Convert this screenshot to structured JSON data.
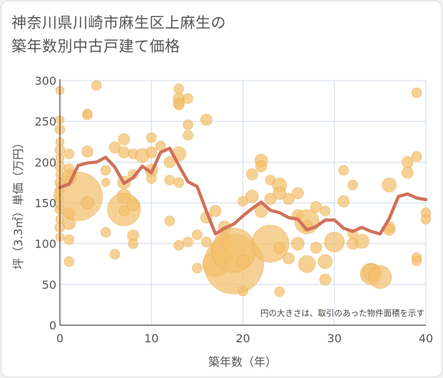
{
  "title_lines": [
    "神奈川県川崎市麻生区上麻生の",
    "築年数別中古戸建て価格"
  ],
  "colors": {
    "bubble_fill": "#f2bf6c",
    "bubble_stroke": "#eaa53c",
    "line": "#d1705a",
    "grid": "#d0dcec",
    "axis": "#444444"
  },
  "chart_data": {
    "type": "scatter",
    "title": "神奈川県川崎市麻生区上麻生の築年数別中古戸建て価格",
    "xlabel": "築年数（年）",
    "ylabel": "坪（3.3㎡）単価（万円）",
    "xlim": [
      0,
      40
    ],
    "ylim": [
      0,
      300
    ],
    "xticks": [
      0,
      10,
      20,
      30,
      40
    ],
    "yticks": [
      0,
      50,
      100,
      150,
      200,
      250,
      300
    ],
    "grid": true,
    "annotation": "円の大きさは、取引のあった物件面積を示す",
    "bubbles": [
      {
        "x": 0,
        "y": 288,
        "s": 6
      },
      {
        "x": 0,
        "y": 252,
        "s": 6
      },
      {
        "x": 0,
        "y": 240,
        "s": 7
      },
      {
        "x": 0,
        "y": 225,
        "s": 6
      },
      {
        "x": 0,
        "y": 215,
        "s": 7
      },
      {
        "x": 0,
        "y": 205,
        "s": 6
      },
      {
        "x": 0,
        "y": 195,
        "s": 7
      },
      {
        "x": 0,
        "y": 185,
        "s": 6
      },
      {
        "x": 0,
        "y": 175,
        "s": 7
      },
      {
        "x": 0,
        "y": 165,
        "s": 6
      },
      {
        "x": 0,
        "y": 155,
        "s": 6
      },
      {
        "x": 0,
        "y": 142,
        "s": 7
      },
      {
        "x": 0,
        "y": 130,
        "s": 6
      },
      {
        "x": 0,
        "y": 120,
        "s": 7
      },
      {
        "x": 0,
        "y": 108,
        "s": 6
      },
      {
        "x": 1,
        "y": 210,
        "s": 7
      },
      {
        "x": 1,
        "y": 192,
        "s": 7
      },
      {
        "x": 1,
        "y": 178,
        "s": 7
      },
      {
        "x": 1,
        "y": 137,
        "s": 8
      },
      {
        "x": 1,
        "y": 105,
        "s": 7
      },
      {
        "x": 1,
        "y": 78,
        "s": 7
      },
      {
        "x": 1,
        "y": 125,
        "s": 9
      },
      {
        "x": 2,
        "y": 158,
        "s": 34
      },
      {
        "x": 1,
        "y": 182,
        "s": 10
      },
      {
        "x": 3,
        "y": 213,
        "s": 8
      },
      {
        "x": 3,
        "y": 150,
        "s": 9
      },
      {
        "x": 3,
        "y": 258,
        "s": 7
      },
      {
        "x": 3,
        "y": 260,
        "s": 6
      },
      {
        "x": 4,
        "y": 294,
        "s": 7
      },
      {
        "x": 5,
        "y": 190,
        "s": 7
      },
      {
        "x": 5,
        "y": 175,
        "s": 6
      },
      {
        "x": 5,
        "y": 114,
        "s": 7
      },
      {
        "x": 6,
        "y": 218,
        "s": 8
      },
      {
        "x": 6,
        "y": 87,
        "s": 7
      },
      {
        "x": 7,
        "y": 228,
        "s": 8
      },
      {
        "x": 7,
        "y": 212,
        "s": 8
      },
      {
        "x": 7,
        "y": 175,
        "s": 9
      },
      {
        "x": 7,
        "y": 158,
        "s": 10
      },
      {
        "x": 7,
        "y": 142,
        "s": 23
      },
      {
        "x": 7,
        "y": 140,
        "s": 7
      },
      {
        "x": 8,
        "y": 210,
        "s": 7
      },
      {
        "x": 8,
        "y": 185,
        "s": 7
      },
      {
        "x": 8,
        "y": 148,
        "s": 9
      },
      {
        "x": 8,
        "y": 110,
        "s": 8
      },
      {
        "x": 8,
        "y": 100,
        "s": 7
      },
      {
        "x": 9,
        "y": 208,
        "s": 10
      },
      {
        "x": 10,
        "y": 230,
        "s": 7
      },
      {
        "x": 10,
        "y": 212,
        "s": 8
      },
      {
        "x": 10,
        "y": 190,
        "s": 9
      },
      {
        "x": 10,
        "y": 180,
        "s": 7
      },
      {
        "x": 11,
        "y": 220,
        "s": 7
      },
      {
        "x": 12,
        "y": 200,
        "s": 8
      },
      {
        "x": 12,
        "y": 178,
        "s": 7
      },
      {
        "x": 12,
        "y": 128,
        "s": 7
      },
      {
        "x": 13,
        "y": 290,
        "s": 7
      },
      {
        "x": 13,
        "y": 278,
        "s": 8
      },
      {
        "x": 13,
        "y": 272,
        "s": 8
      },
      {
        "x": 13,
        "y": 270,
        "s": 7
      },
      {
        "x": 13,
        "y": 210,
        "s": 10
      },
      {
        "x": 13,
        "y": 175,
        "s": 7
      },
      {
        "x": 13,
        "y": 98,
        "s": 7
      },
      {
        "x": 14,
        "y": 278,
        "s": 7
      },
      {
        "x": 14,
        "y": 246,
        "s": 7
      },
      {
        "x": 14,
        "y": 233,
        "s": 7
      },
      {
        "x": 14,
        "y": 102,
        "s": 7
      },
      {
        "x": 15,
        "y": 111,
        "s": 7
      },
      {
        "x": 15,
        "y": 70,
        "s": 7
      },
      {
        "x": 16,
        "y": 252,
        "s": 8
      },
      {
        "x": 16,
        "y": 132,
        "s": 8
      },
      {
        "x": 16,
        "y": 102,
        "s": 7
      },
      {
        "x": 17,
        "y": 140,
        "s": 8
      },
      {
        "x": 17,
        "y": 93,
        "s": 7
      },
      {
        "x": 17,
        "y": 75,
        "s": 18
      },
      {
        "x": 18,
        "y": 120,
        "s": 9
      },
      {
        "x": 18,
        "y": 105,
        "s": 9
      },
      {
        "x": 18,
        "y": 100,
        "s": 9
      },
      {
        "x": 18,
        "y": 84,
        "s": 10
      },
      {
        "x": 19,
        "y": 75,
        "s": 42
      },
      {
        "x": 19,
        "y": 92,
        "s": 31
      },
      {
        "x": 20,
        "y": 152,
        "s": 7
      },
      {
        "x": 20,
        "y": 42,
        "s": 7
      },
      {
        "x": 20,
        "y": 78,
        "s": 9
      },
      {
        "x": 21,
        "y": 185,
        "s": 8
      },
      {
        "x": 21,
        "y": 158,
        "s": 9
      },
      {
        "x": 22,
        "y": 202,
        "s": 9
      },
      {
        "x": 22,
        "y": 195,
        "s": 8
      },
      {
        "x": 22,
        "y": 140,
        "s": 9
      },
      {
        "x": 23,
        "y": 178,
        "s": 7
      },
      {
        "x": 23,
        "y": 155,
        "s": 8
      },
      {
        "x": 23,
        "y": 100,
        "s": 26
      },
      {
        "x": 24,
        "y": 172,
        "s": 10
      },
      {
        "x": 24,
        "y": 162,
        "s": 9
      },
      {
        "x": 24,
        "y": 95,
        "s": 8
      },
      {
        "x": 24,
        "y": 41,
        "s": 7
      },
      {
        "x": 25,
        "y": 155,
        "s": 8
      },
      {
        "x": 25,
        "y": 82,
        "s": 8
      },
      {
        "x": 26,
        "y": 162,
        "s": 8
      },
      {
        "x": 26,
        "y": 135,
        "s": 8
      },
      {
        "x": 26,
        "y": 100,
        "s": 9
      },
      {
        "x": 27,
        "y": 127,
        "s": 17
      },
      {
        "x": 27,
        "y": 75,
        "s": 12
      },
      {
        "x": 27,
        "y": 122,
        "s": 8
      },
      {
        "x": 28,
        "y": 145,
        "s": 8
      },
      {
        "x": 28,
        "y": 95,
        "s": 8
      },
      {
        "x": 29,
        "y": 140,
        "s": 7
      },
      {
        "x": 29,
        "y": 78,
        "s": 10
      },
      {
        "x": 29,
        "y": 56,
        "s": 8
      },
      {
        "x": 30,
        "y": 102,
        "s": 14
      },
      {
        "x": 31,
        "y": 190,
        "s": 7
      },
      {
        "x": 31,
        "y": 152,
        "s": 8
      },
      {
        "x": 32,
        "y": 172,
        "s": 7
      },
      {
        "x": 32,
        "y": 112,
        "s": 7
      },
      {
        "x": 32,
        "y": 100,
        "s": 8
      },
      {
        "x": 33,
        "y": 103,
        "s": 10
      },
      {
        "x": 34,
        "y": 63,
        "s": 15
      },
      {
        "x": 34,
        "y": 65,
        "s": 12
      },
      {
        "x": 35,
        "y": 59,
        "s": 16
      },
      {
        "x": 36,
        "y": 172,
        "s": 10
      },
      {
        "x": 36,
        "y": 120,
        "s": 8
      },
      {
        "x": 36,
        "y": 117,
        "s": 8
      },
      {
        "x": 38,
        "y": 200,
        "s": 8
      },
      {
        "x": 38,
        "y": 187,
        "s": 8
      },
      {
        "x": 39,
        "y": 285,
        "s": 7
      },
      {
        "x": 39,
        "y": 207,
        "s": 7
      },
      {
        "x": 39,
        "y": 83,
        "s": 7
      },
      {
        "x": 39,
        "y": 79,
        "s": 7
      },
      {
        "x": 40,
        "y": 138,
        "s": 7
      },
      {
        "x": 40,
        "y": 130,
        "s": 7
      }
    ],
    "line": {
      "x": [
        0,
        1,
        2,
        3,
        4,
        5,
        6,
        7,
        8,
        9,
        10,
        11,
        12,
        13,
        14,
        15,
        16,
        17,
        18,
        19,
        20,
        21,
        22,
        23,
        24,
        25,
        26,
        27,
        28,
        29,
        30,
        31,
        32,
        33,
        34,
        35,
        36,
        37,
        38,
        39,
        40
      ],
      "y": [
        169,
        173,
        196,
        199,
        200,
        206,
        194,
        174,
        181,
        195,
        187,
        212,
        217,
        196,
        176,
        170,
        140,
        112,
        119,
        124,
        134,
        143,
        151,
        141,
        138,
        132,
        130,
        117,
        121,
        129,
        129,
        119,
        115,
        120,
        115,
        112,
        131,
        158,
        161,
        156,
        154
      ]
    }
  }
}
